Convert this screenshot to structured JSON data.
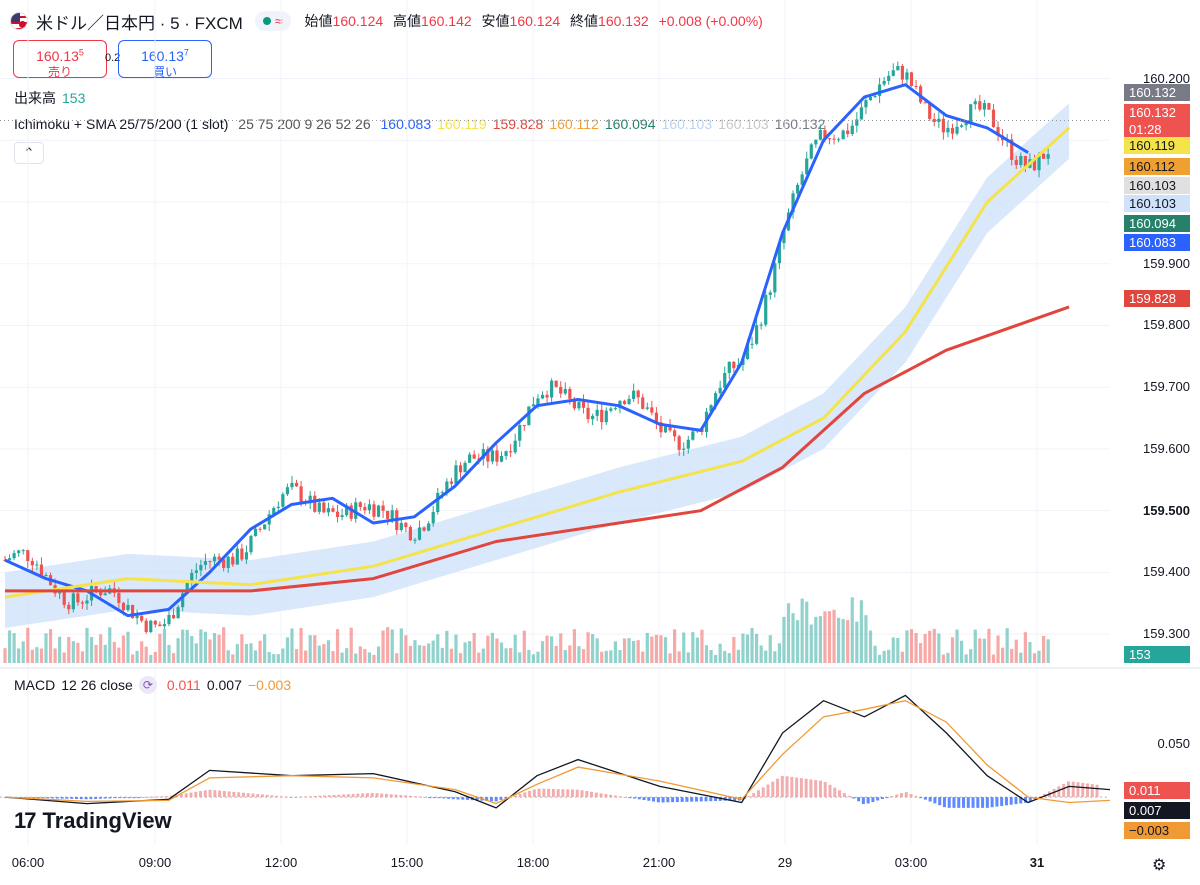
{
  "header": {
    "symbol": "米ドル／日本円 · 5 · FXCM",
    "wave_icon": "≈",
    "open_label": "始値",
    "open": "160.124",
    "high_label": "高値",
    "high": "160.142",
    "low_label": "安値",
    "low": "160.124",
    "close_label": "終値",
    "close": "160.132",
    "change": "+0.008 (+0.00%)"
  },
  "trade": {
    "sell_price_main": "160.13",
    "sell_price_sup": "5",
    "sell_label": "売り",
    "spread": "0.2",
    "buy_price_main": "160.13",
    "buy_price_sup": "7",
    "buy_label": "買い"
  },
  "volume_legend": {
    "label": "出来高",
    "value": "153"
  },
  "indicator_legend": {
    "name": "Ichimoku + SMA 25/75/200 (1 slot)",
    "params": "25 75 200 9 26 52 26",
    "values": [
      {
        "v": "160.083",
        "color": "#2962ff"
      },
      {
        "v": "160.119",
        "color": "#f5e34a"
      },
      {
        "v": "159.828",
        "color": "#e0463d"
      },
      {
        "v": "160.112",
        "color": "#f0a030"
      },
      {
        "v": "160.094",
        "color": "#26806a"
      },
      {
        "v": "160.103",
        "color": "#b9d3f2"
      },
      {
        "v": "160.103",
        "color": "#c8c8c8"
      },
      {
        "v": "160.132",
        "color": "#787b86"
      }
    ],
    "collapse_icon": "⌃"
  },
  "macd_legend": {
    "name": "MACD",
    "params": "12 26 close",
    "icon": "⟳",
    "hist": "0.011",
    "macd": "0.007",
    "signal": "−0.003"
  },
  "brand": {
    "logo_mark": "17",
    "name": "TradingView"
  },
  "colors": {
    "up": "#26a69a",
    "down": "#ef5350",
    "sma25": "#2962ff",
    "sma75": "#f5e34a",
    "sma200": "#e0463d",
    "cloud": "#cfe2fa",
    "macd": "#131722",
    "signal": "#f09a35"
  },
  "chart_data": [
    {
      "type": "candlestick",
      "title": "米ドル／日本円 · 5 · FXCM",
      "ylim": [
        159.25,
        160.23
      ],
      "yticks": [
        "160.200",
        "160.100",
        "160.000",
        "159.900",
        "159.800",
        "159.700",
        "159.600",
        "159.500",
        "159.400",
        "159.300"
      ],
      "bold_tick": "159.500",
      "xticks": [
        "06:00",
        "09:00",
        "12:00",
        "15:00",
        "18:00",
        "21:00",
        "29",
        "03:00",
        "31"
      ],
      "series": [
        {
          "name": "SMA 25",
          "points": [
            [
              0,
              159.42
            ],
            [
              1,
              159.39
            ],
            [
              2,
              159.37
            ],
            [
              3,
              159.33
            ],
            [
              4,
              159.34
            ],
            [
              5,
              159.4
            ],
            [
              6,
              159.47
            ],
            [
              7,
              159.51
            ],
            [
              8,
              159.52
            ],
            [
              9,
              159.48
            ],
            [
              10,
              159.49
            ],
            [
              11,
              159.54
            ],
            [
              12,
              159.61
            ],
            [
              13,
              159.67
            ],
            [
              14,
              159.68
            ],
            [
              15,
              159.67
            ],
            [
              16,
              159.64
            ],
            [
              17,
              159.63
            ],
            [
              18,
              159.74
            ],
            [
              19,
              159.95
            ],
            [
              20,
              160.1
            ],
            [
              21,
              160.17
            ],
            [
              22,
              160.19
            ],
            [
              23,
              160.14
            ],
            [
              24,
              160.12
            ],
            [
              25,
              160.08
            ]
          ]
        },
        {
          "name": "SMA 75",
          "points": [
            [
              0,
              159.36
            ],
            [
              3,
              159.39
            ],
            [
              6,
              159.38
            ],
            [
              9,
              159.41
            ],
            [
              12,
              159.47
            ],
            [
              15,
              159.53
            ],
            [
              18,
              159.58
            ],
            [
              20,
              159.65
            ],
            [
              22,
              159.79
            ],
            [
              24,
              160.0
            ],
            [
              26,
              160.12
            ]
          ]
        },
        {
          "name": "SMA 200",
          "points": [
            [
              0,
              159.37
            ],
            [
              6,
              159.37
            ],
            [
              9,
              159.39
            ],
            [
              12,
              159.45
            ],
            [
              15,
              159.48
            ],
            [
              17,
              159.5
            ],
            [
              19,
              159.57
            ],
            [
              21,
              159.69
            ],
            [
              23,
              159.76
            ],
            [
              26,
              159.83
            ]
          ]
        }
      ],
      "last_price_tags": [
        {
          "v": "160.132",
          "bg": "#787b86",
          "fg": "#ffffff"
        },
        {
          "v": "160.132",
          "sub": "01:28",
          "bg": "#ef5350",
          "fg": "#ffffff"
        },
        {
          "v": "160.119",
          "bg": "#f5e34a",
          "fg": "#131722"
        },
        {
          "v": "160.112",
          "bg": "#f0a030",
          "fg": "#131722"
        },
        {
          "v": "160.103",
          "bg": "#e0e0e0",
          "fg": "#131722"
        },
        {
          "v": "160.103",
          "bg": "#cfe2fa",
          "fg": "#131722"
        },
        {
          "v": "160.094",
          "bg": "#26806a",
          "fg": "#ffffff"
        },
        {
          "v": "160.083",
          "bg": "#2962ff",
          "fg": "#ffffff"
        },
        {
          "v": "159.828",
          "bg": "#e0463d",
          "fg": "#ffffff"
        }
      ],
      "volume_tag": {
        "v": "153",
        "bg": "#26a69a",
        "fg": "#ffffff"
      }
    },
    {
      "type": "line",
      "title": "MACD 12 26 close",
      "ylim": [
        -0.04,
        0.1
      ],
      "yticks": [
        "0.050"
      ],
      "series": [
        {
          "name": "MACD",
          "points": [
            [
              0,
              0.0
            ],
            [
              2,
              -0.006
            ],
            [
              4,
              -0.002
            ],
            [
              5,
              0.025
            ],
            [
              7,
              0.02
            ],
            [
              9,
              0.022
            ],
            [
              11,
              0.005
            ],
            [
              12,
              -0.01
            ],
            [
              13,
              0.02
            ],
            [
              14,
              0.035
            ],
            [
              16,
              0.01
            ],
            [
              18,
              -0.005
            ],
            [
              19,
              0.06
            ],
            [
              20,
              0.09
            ],
            [
              21,
              0.075
            ],
            [
              22,
              0.095
            ],
            [
              23,
              0.06
            ],
            [
              24,
              0.02
            ],
            [
              25,
              -0.005
            ],
            [
              26,
              0.01
            ],
            [
              27,
              0.007
            ]
          ]
        },
        {
          "name": "Signal",
          "points": [
            [
              0,
              0.0
            ],
            [
              2,
              -0.004
            ],
            [
              4,
              -0.003
            ],
            [
              5,
              0.018
            ],
            [
              7,
              0.02
            ],
            [
              9,
              0.018
            ],
            [
              11,
              0.007
            ],
            [
              12,
              -0.006
            ],
            [
              13,
              0.012
            ],
            [
              14,
              0.028
            ],
            [
              16,
              0.015
            ],
            [
              18,
              -0.002
            ],
            [
              19,
              0.04
            ],
            [
              20,
              0.075
            ],
            [
              21,
              0.082
            ],
            [
              22,
              0.09
            ],
            [
              23,
              0.07
            ],
            [
              24,
              0.03
            ],
            [
              25,
              0.0
            ],
            [
              26,
              -0.005
            ],
            [
              27,
              -0.003
            ]
          ]
        }
      ],
      "last_tags": [
        {
          "v": "0.011",
          "bg": "#ef5350",
          "fg": "#ffffff"
        },
        {
          "v": "0.007",
          "bg": "#131722",
          "fg": "#ffffff"
        },
        {
          "v": "−0.003",
          "bg": "#f09a35",
          "fg": "#131722"
        }
      ]
    }
  ]
}
